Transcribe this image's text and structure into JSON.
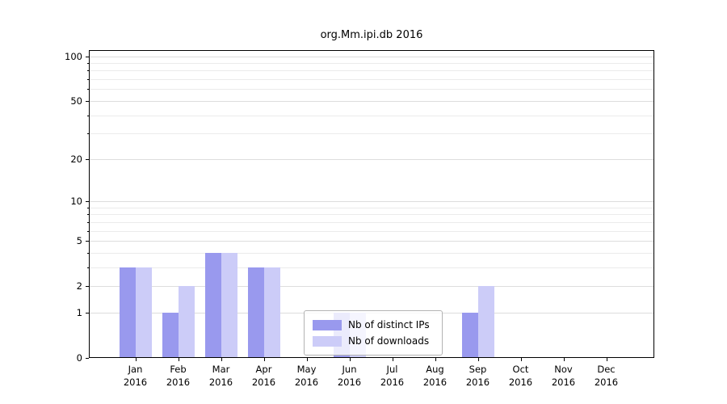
{
  "chart_data": {
    "type": "bar",
    "title": "org.Mm.ipi.db 2016",
    "categories": [
      "Jan 2016",
      "Feb 2016",
      "Mar 2016",
      "Apr 2016",
      "May 2016",
      "Jun 2016",
      "Jul 2016",
      "Aug 2016",
      "Sep 2016",
      "Oct 2016",
      "Nov 2016",
      "Dec 2016"
    ],
    "series": [
      {
        "name": "Nb of distinct IPs",
        "color": "#9999ee",
        "values": [
          3,
          1,
          4,
          3,
          0,
          1,
          0,
          0,
          1,
          0,
          0,
          0
        ]
      },
      {
        "name": "Nb of downloads",
        "color": "#ccccf8",
        "values": [
          3,
          2,
          4,
          3,
          0,
          1,
          0,
          0,
          2,
          0,
          0,
          0
        ]
      }
    ],
    "yscale": "log1p",
    "ylim": [
      0,
      110
    ],
    "yticks_major": [
      0,
      1,
      2,
      5,
      10,
      20,
      50,
      100
    ],
    "yticks_minor": [
      3,
      4,
      6,
      7,
      8,
      9,
      30,
      40,
      60,
      70,
      80,
      90
    ],
    "grid": "horizontal",
    "legend_position": "lower center"
  },
  "colors": {
    "grid_major": "#dddddd",
    "grid_minor": "#ebebeb",
    "axis": "#000000",
    "legend_border": "#b3b3b3"
  }
}
